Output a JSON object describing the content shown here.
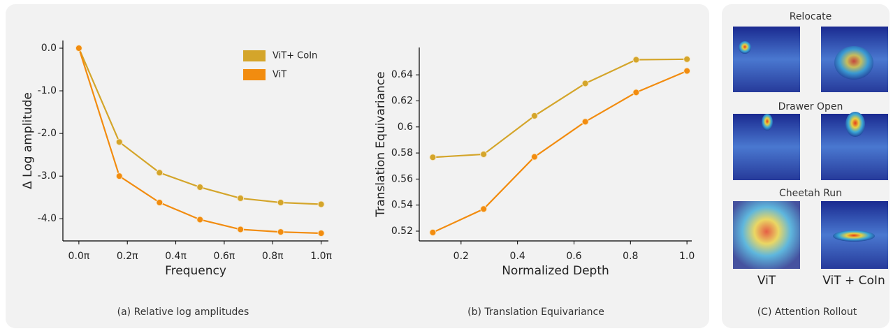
{
  "chart_data": [
    {
      "type": "line",
      "caption": "(a) Relative log amplitudes",
      "xlabel": "Frequency",
      "ylabel": "Δ Log amplitude",
      "x": [
        0,
        0.167,
        0.333,
        0.5,
        0.667,
        0.833,
        1.0
      ],
      "series": [
        {
          "name": "ViT+ CoIn",
          "color": "#d4a52a",
          "values": [
            0.0,
            -2.2,
            -2.92,
            -3.26,
            -3.52,
            -3.62,
            -3.66
          ]
        },
        {
          "name": "ViT",
          "color": "#f28c0f",
          "values": [
            0.0,
            -3.0,
            -3.62,
            -4.02,
            -4.25,
            -4.31,
            -4.34
          ]
        }
      ],
      "xlim": [
        -0.066,
        1.03
      ],
      "xticks": [
        {
          "value": 0,
          "label": "0.0π"
        },
        {
          "value": 0.2,
          "label": "0.2π"
        },
        {
          "value": 0.4,
          "label": "0.4π"
        },
        {
          "value": 0.6,
          "label": "0.6π"
        },
        {
          "value": 0.8,
          "label": "0.8π"
        },
        {
          "value": 1.0,
          "label": "1.0π"
        }
      ],
      "ylim": [
        -4.52,
        0.18
      ],
      "yticks": [
        {
          "value": 0,
          "label": "0.0"
        },
        {
          "value": -1,
          "label": "-1.0"
        },
        {
          "value": -2,
          "label": "-2.0"
        },
        {
          "value": -3,
          "label": "-3.0"
        },
        {
          "value": -4,
          "label": "-4.0"
        }
      ],
      "legend": "upper right"
    },
    {
      "type": "line",
      "caption": "(b) Translation Equivariance",
      "xlabel": "Normalized Depth",
      "ylabel": "Translation Equivariance",
      "x": [
        0.1,
        0.28,
        0.46,
        0.64,
        0.82,
        1.0
      ],
      "series": [
        {
          "color": "#d4a52a",
          "values": [
            0.5767,
            0.579,
            0.6085,
            0.6334,
            0.6516,
            0.652
          ]
        },
        {
          "color": "#f28c0f",
          "values": [
            0.519,
            0.537,
            0.577,
            0.604,
            0.6265,
            0.643
          ]
        }
      ],
      "xlim": [
        0.052,
        1.017
      ],
      "xticks": [
        0.2,
        0.4,
        0.6,
        0.8,
        {
          "value": 1.0,
          "label": "1.0"
        }
      ],
      "ylim": [
        0.5125,
        0.661
      ],
      "yticks": [
        0.52,
        0.54,
        0.56,
        0.58,
        0.6,
        0.62,
        0.64
      ]
    }
  ],
  "panel_c": {
    "caption": "(C) Attention Rollout",
    "rows": [
      "Relocate",
      "Drawer Open",
      "Cheetah Run"
    ],
    "columns": [
      "ViT",
      "ViT + CoIn"
    ]
  }
}
